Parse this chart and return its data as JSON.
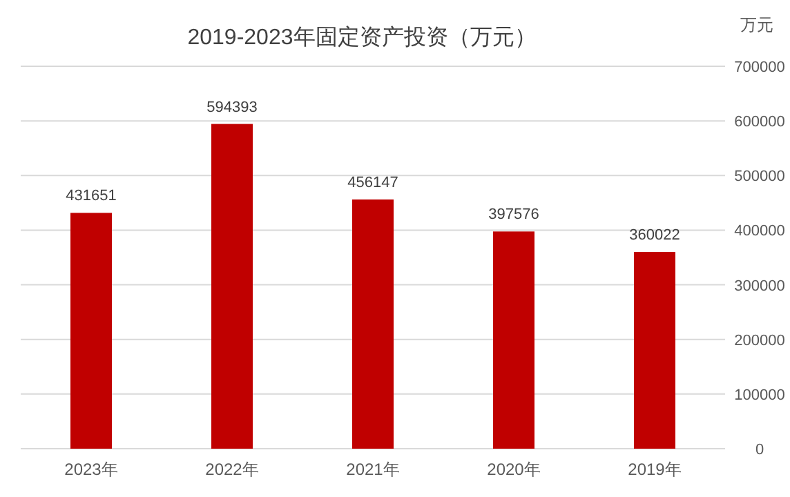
{
  "chart_data": {
    "type": "bar",
    "title": "2019-2023年固定资产投资（万元）",
    "ylabel": "万元",
    "categories": [
      "2023年",
      "2022年",
      "2021年",
      "2020年",
      "2019年"
    ],
    "values": [
      431651,
      594393,
      456147,
      397576,
      360022
    ],
    "color": "#c00000",
    "ylim": [
      0,
      700000
    ],
    "yticks": [
      0,
      100000,
      200000,
      300000,
      400000,
      500000,
      600000,
      700000
    ],
    "grid": "y",
    "data_labels": true
  }
}
